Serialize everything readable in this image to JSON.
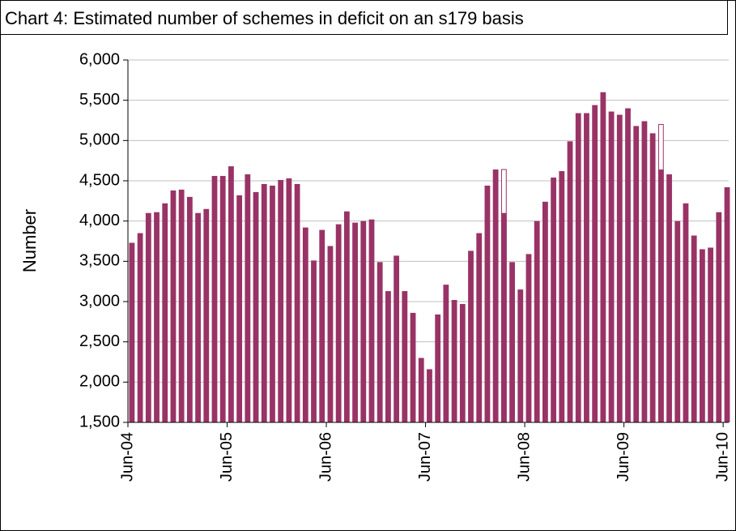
{
  "chart_data": {
    "type": "bar",
    "title": "Chart 4: Estimated number of schemes in deficit on an s179 basis",
    "y_label": "Number",
    "categories": [
      "Jun-04",
      null,
      null,
      null,
      null,
      null,
      null,
      null,
      null,
      null,
      null,
      null,
      "Jun-05",
      null,
      null,
      null,
      null,
      null,
      null,
      null,
      null,
      null,
      null,
      null,
      "Jun-06",
      null,
      null,
      null,
      null,
      null,
      null,
      null,
      null,
      null,
      null,
      null,
      "Jun-07",
      null,
      null,
      null,
      null,
      null,
      null,
      null,
      null,
      null,
      null,
      null,
      "Jun-08",
      null,
      null,
      null,
      null,
      null,
      null,
      null,
      null,
      null,
      null,
      null,
      "Jun-09",
      null,
      null,
      null,
      null,
      null,
      null,
      null,
      null,
      null,
      null,
      null,
      "Jun-10"
    ],
    "series": [
      {
        "color": "#993366",
        "style": "filled",
        "values": [
          3730,
          3850,
          4100,
          4110,
          4220,
          4380,
          4390,
          4300,
          4100,
          4150,
          4560,
          4560,
          4680,
          4320,
          4580,
          4360,
          4460,
          4440,
          4510,
          4530,
          4460,
          3920,
          3510,
          3890,
          3690,
          3960,
          4120,
          3980,
          4000,
          4020,
          3490,
          3130,
          3570,
          3130,
          2860,
          2300,
          2160,
          2840,
          3210,
          3020,
          2970,
          3630,
          3850,
          4440,
          4640,
          4100,
          3490,
          3150,
          3590,
          4000,
          4240,
          4540,
          4620,
          4990,
          5340,
          5340,
          5440,
          5600,
          5360,
          5320,
          5400,
          5180,
          5240,
          5090,
          4640,
          4580,
          4000,
          4220,
          3820,
          3650,
          3670,
          4110,
          4420
        ]
      },
      {
        "color": "#993366",
        "style": "outline",
        "values": [
          null,
          null,
          null,
          null,
          null,
          null,
          null,
          null,
          null,
          null,
          null,
          null,
          null,
          null,
          null,
          null,
          null,
          null,
          null,
          null,
          null,
          null,
          null,
          null,
          null,
          null,
          null,
          null,
          null,
          null,
          null,
          null,
          null,
          null,
          null,
          null,
          null,
          null,
          null,
          null,
          null,
          null,
          null,
          null,
          null,
          4640,
          null,
          null,
          null,
          null,
          null,
          null,
          null,
          null,
          null,
          null,
          null,
          null,
          null,
          null,
          null,
          null,
          null,
          null,
          5200,
          null,
          null,
          null,
          null,
          null,
          null,
          null,
          null
        ]
      }
    ],
    "ylim": [
      1500,
      6000
    ],
    "yticks": [
      {
        "value": 1500,
        "label": "1,500"
      },
      {
        "value": 2000,
        "label": "2,000"
      },
      {
        "value": 2500,
        "label": "2,500"
      },
      {
        "value": 3000,
        "label": "3,000"
      },
      {
        "value": 3500,
        "label": "3,500"
      },
      {
        "value": 4000,
        "label": "4,000"
      },
      {
        "value": 4500,
        "label": "4,500"
      },
      {
        "value": 5000,
        "label": "5,000"
      },
      {
        "value": 5500,
        "label": "5,500"
      },
      {
        "value": 6000,
        "label": "6,000"
      }
    ],
    "grid": true
  }
}
